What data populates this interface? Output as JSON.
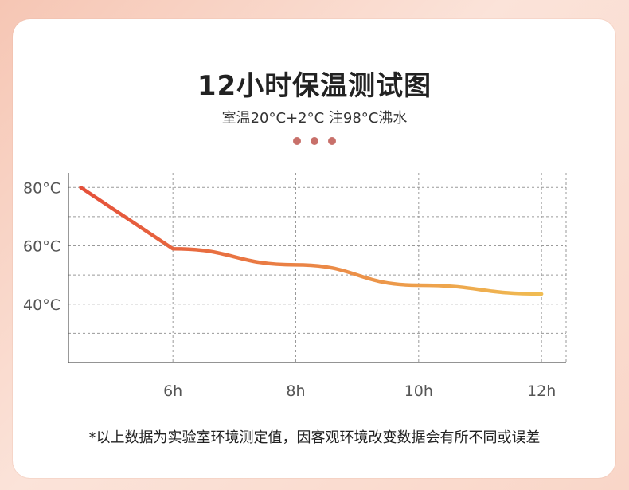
{
  "header": {
    "title": "12小时保温测试图",
    "subtitle": "室温20°C+2°C  注98°C沸水"
  },
  "dots": {
    "color": "#c8706a",
    "count": 3
  },
  "footnote": "*以上数据为实验室环境测定值，因客观环境改变数据会有所不同或误差",
  "colors": {
    "line_start": "#e5503a",
    "line_end": "#f0bc52",
    "grid": "#9a9a9a",
    "axis": "#555555",
    "tick_text": "#555555"
  },
  "chart_data": {
    "type": "line",
    "title": "12小时保温测试图",
    "xlabel": "",
    "ylabel": "",
    "x_ticks": [
      "6h",
      "8h",
      "10h",
      "12h"
    ],
    "y_ticks": [
      "80°C",
      "60°C",
      "40°C"
    ],
    "xlim": [
      4.3,
      12.4
    ],
    "ylim": [
      20,
      85
    ],
    "grid": true,
    "series": [
      {
        "x": [
          4.5,
          6,
          8,
          10,
          12
        ],
        "y": [
          80,
          59,
          53.5,
          46.5,
          43.5
        ]
      }
    ]
  }
}
